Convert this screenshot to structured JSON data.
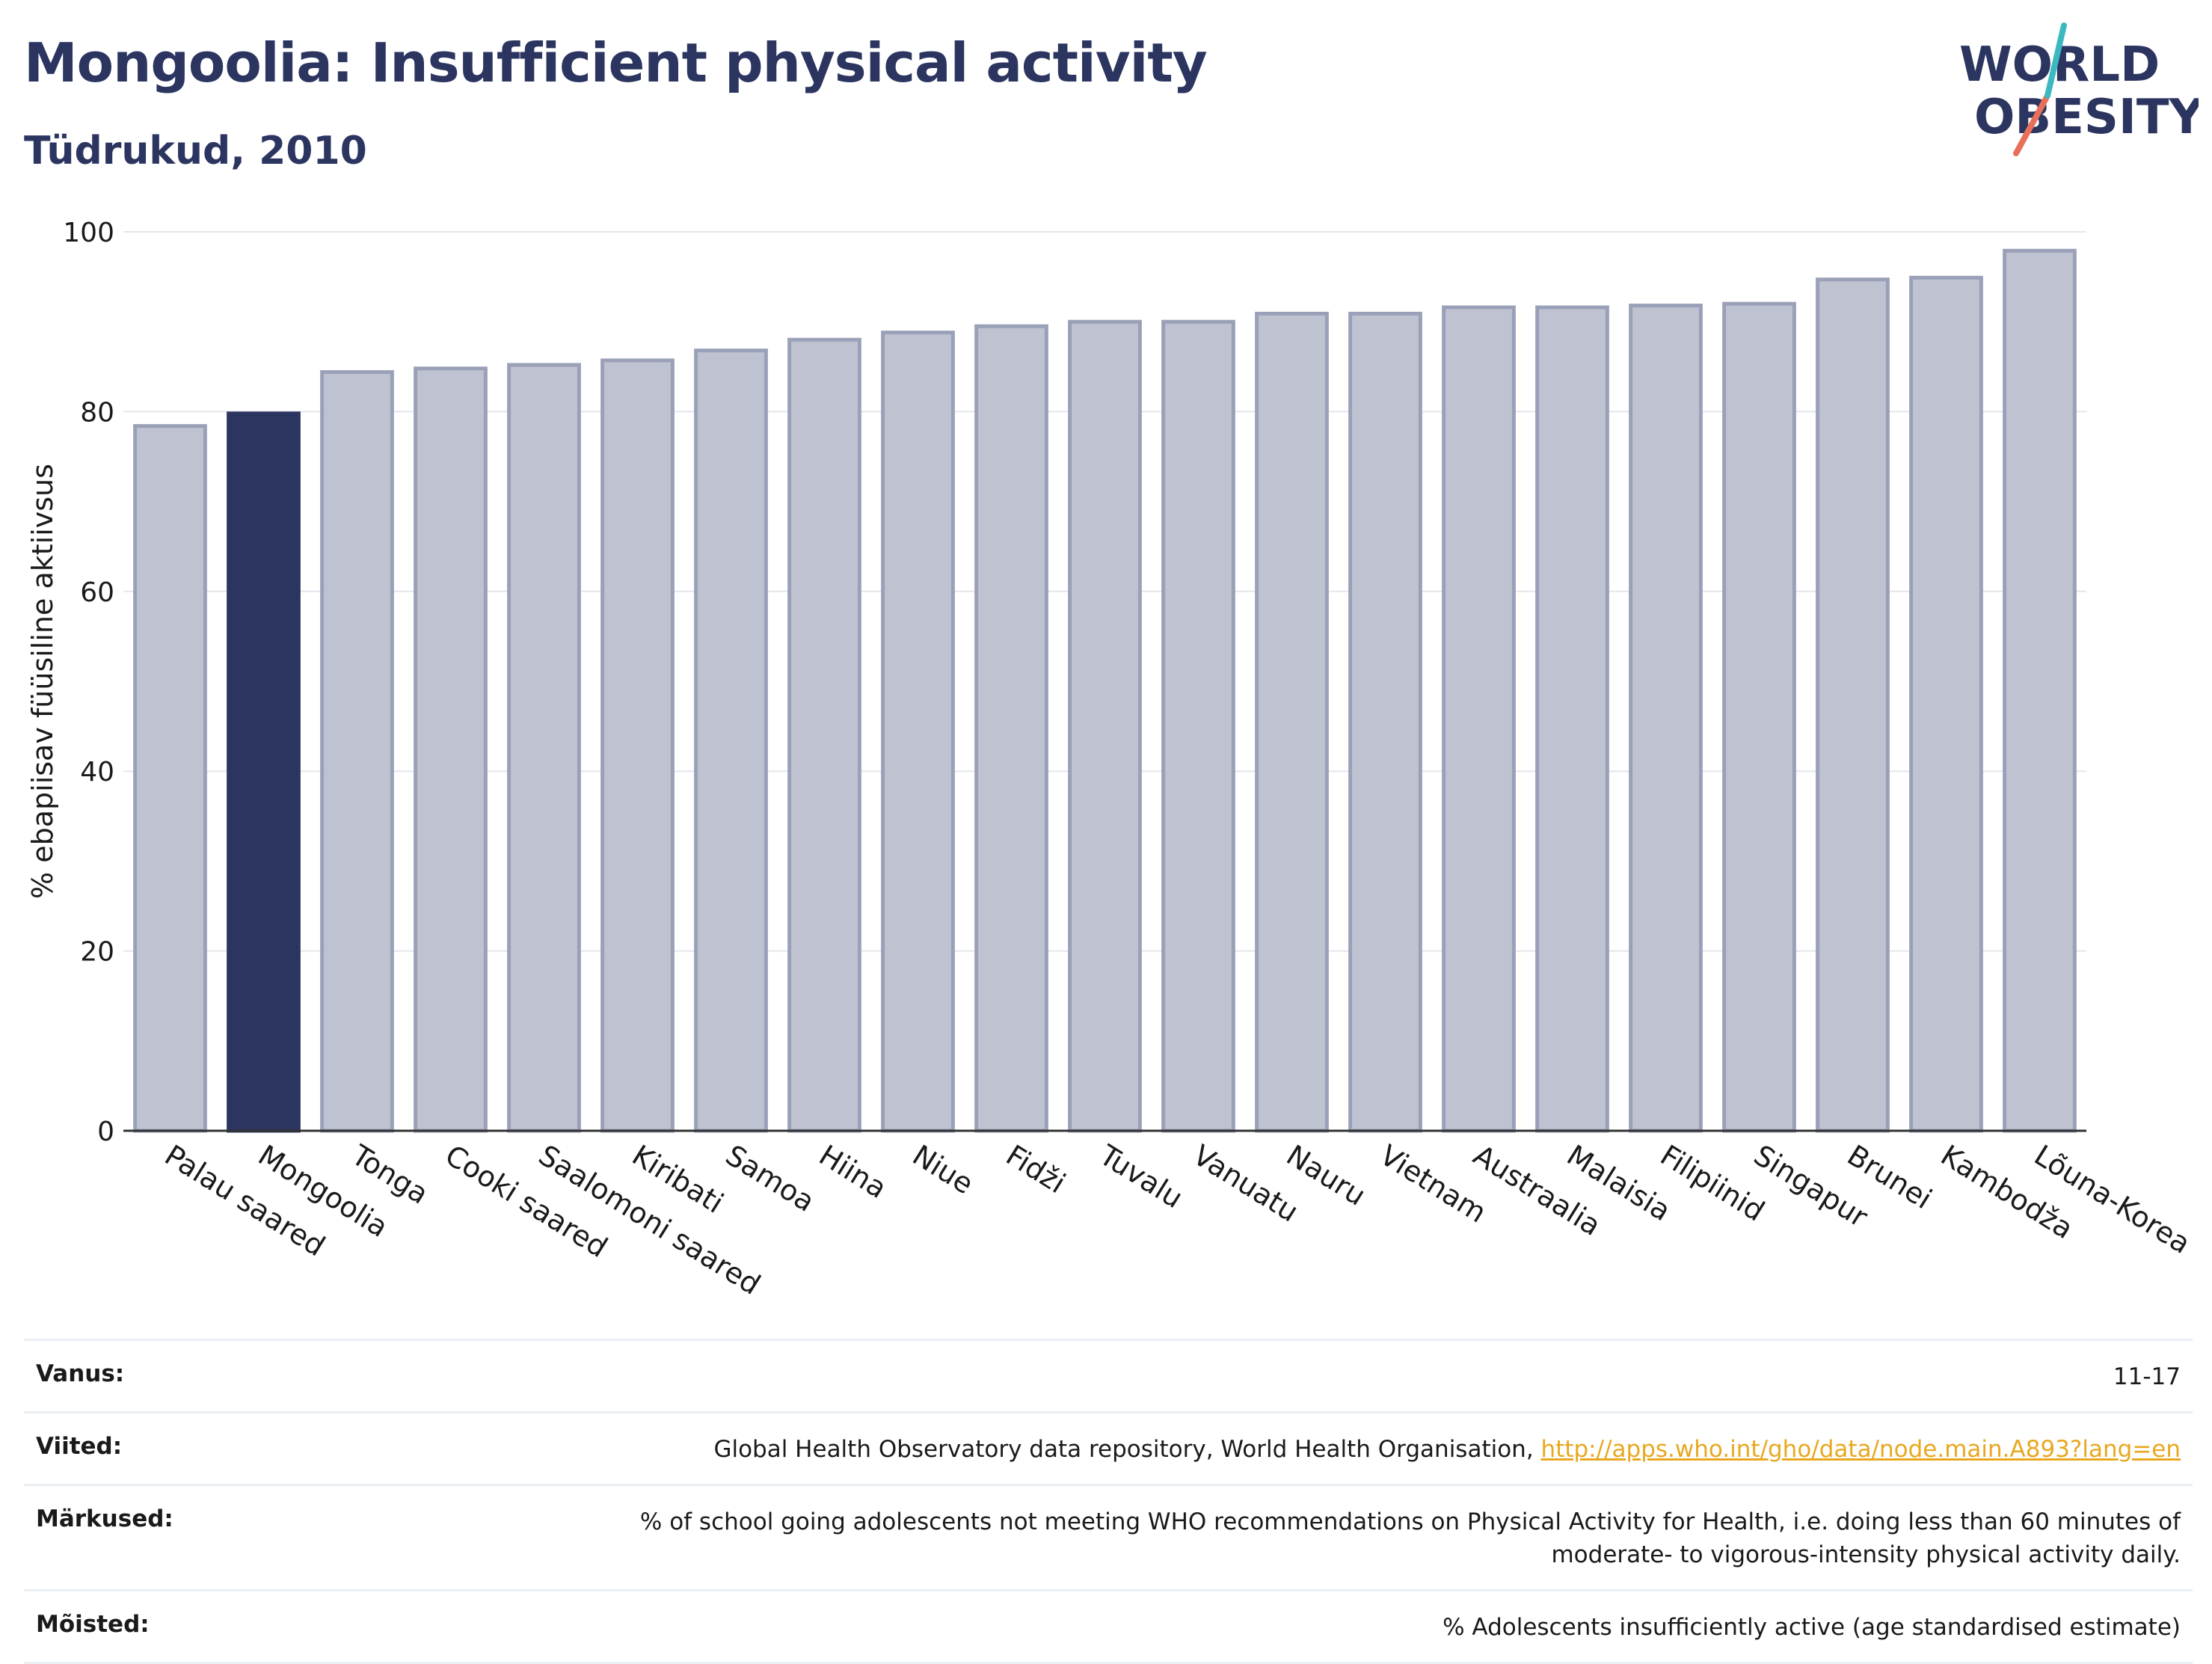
{
  "title": "Mongoolia: Insufficient physical activity",
  "subtitle": "Tüdrukud, 2010",
  "logo": {
    "line1": "WORLD",
    "line2": "OBESITY"
  },
  "colors": {
    "highlight": "#2b3560",
    "bar_fill": "#bfc3d1",
    "bar_stroke": "#9aa0b8",
    "title": "#2b3560",
    "link": "#e8a820"
  },
  "chart_data": {
    "type": "bar",
    "ylabel": "% ebapiisav füüsiline aktiivsus",
    "ylim": [
      0,
      100
    ],
    "yticks": [
      0,
      20,
      40,
      60,
      80,
      100
    ],
    "grid": true,
    "highlight": "Mongoolia",
    "categories": [
      "Palau saared",
      "Mongoolia",
      "Tonga",
      "Cooki saared",
      "Saalomoni saared",
      "Kiribati",
      "Samoa",
      "Hiina",
      "Niue",
      "Fidži",
      "Tuvalu",
      "Vanuatu",
      "Nauru",
      "Vietnam",
      "Austraalia",
      "Malaisia",
      "Filipiinid",
      "Singapur",
      "Brunei",
      "Kambodža",
      "Lõuna-Korea"
    ],
    "values": [
      78.4,
      79.8,
      84.4,
      84.8,
      85.2,
      85.7,
      86.8,
      88.0,
      88.8,
      89.5,
      90.0,
      90.0,
      90.9,
      90.9,
      91.6,
      91.6,
      91.8,
      92.0,
      94.7,
      94.9,
      97.9
    ]
  },
  "info": {
    "age_label": "Vanus:",
    "age_value": "11-17",
    "refs_label": "Viited:",
    "refs_text": "Global Health Observatory data repository, World Health Organisation, ",
    "refs_link": "http://apps.who.int/gho/data/node.main.A893?lang=en",
    "notes_label": "Märkused:",
    "notes_line1": "% of school going adolescents not meeting WHO recommendations on Physical Activity for Health, i.e. doing less than 60 minutes of",
    "notes_line2": "moderate- to vigorous-intensity physical activity daily.",
    "defs_label": "Mõisted:",
    "defs_value": "% Adolescents insufficiently active (age standardised estimate)"
  }
}
